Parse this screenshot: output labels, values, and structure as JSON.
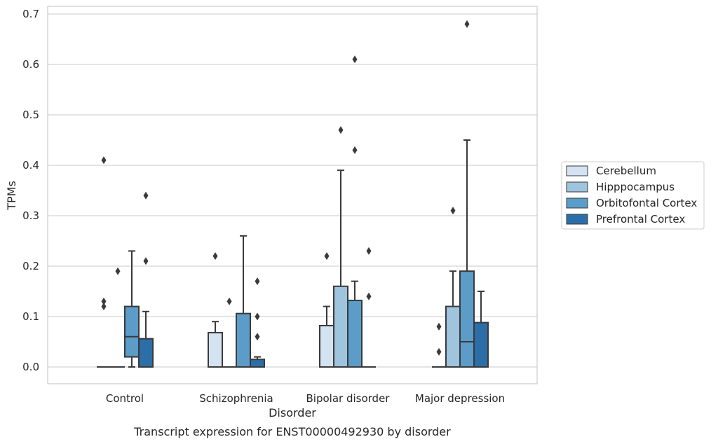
{
  "chart_data": {
    "type": "box",
    "caption": "Transcript expression for ENST00000492930 by disorder",
    "xlabel": "Disorder",
    "ylabel": "TPMs",
    "ylim": [
      -0.033,
      0.715
    ],
    "yticks": [
      0.0,
      0.1,
      0.2,
      0.3,
      0.4,
      0.5,
      0.6,
      0.7
    ],
    "ytick_labels": [
      "0.0",
      "0.1",
      "0.2",
      "0.3",
      "0.4",
      "0.5",
      "0.6",
      "0.7"
    ],
    "grid": "horizontal",
    "legend_placement": "right, outside plot",
    "categories": [
      "Control",
      "Schizophrenia",
      "Bipolar disorder",
      "Major depression"
    ],
    "series": [
      {
        "name": "Cerebellum",
        "color": "#d4e3f1",
        "boxes": [
          {
            "q1": 0,
            "median": 0,
            "q3": 0,
            "whisker_low": 0,
            "whisker_high": 0,
            "outliers": [
              0.12,
              0.13,
              0.41
            ]
          },
          {
            "q1": 0,
            "median": 0,
            "q3": 0.068,
            "whisker_low": 0,
            "whisker_high": 0.09,
            "outliers": [
              0.22
            ]
          },
          {
            "q1": 0,
            "median": 0,
            "q3": 0.082,
            "whisker_low": 0,
            "whisker_high": 0.12,
            "outliers": [
              0.22
            ]
          },
          {
            "q1": 0,
            "median": 0,
            "q3": 0,
            "whisker_low": 0,
            "whisker_high": 0,
            "outliers": [
              0.03,
              0.08
            ]
          }
        ]
      },
      {
        "name": "Hipppocampus",
        "color": "#9ec4de",
        "boxes": [
          {
            "q1": 0,
            "median": 0,
            "q3": 0,
            "whisker_low": 0,
            "whisker_high": 0,
            "outliers": [
              0.19
            ]
          },
          {
            "q1": 0,
            "median": 0,
            "q3": 0,
            "whisker_low": 0,
            "whisker_high": 0,
            "outliers": [
              0.13
            ]
          },
          {
            "q1": 0,
            "median": 0,
            "q3": 0.16,
            "whisker_low": 0,
            "whisker_high": 0.39,
            "outliers": [
              0.47
            ]
          },
          {
            "q1": 0,
            "median": 0,
            "q3": 0.12,
            "whisker_low": 0,
            "whisker_high": 0.19,
            "outliers": [
              0.31
            ]
          }
        ]
      },
      {
        "name": "Orbitofontal Cortex",
        "color": "#5b9cc9",
        "boxes": [
          {
            "q1": 0.02,
            "median": 0.06,
            "q3": 0.12,
            "whisker_low": 0,
            "whisker_high": 0.23,
            "outliers": []
          },
          {
            "q1": 0,
            "median": 0,
            "q3": 0.106,
            "whisker_low": 0,
            "whisker_high": 0.26,
            "outliers": []
          },
          {
            "q1": 0,
            "median": 0,
            "q3": 0.132,
            "whisker_low": 0,
            "whisker_high": 0.17,
            "outliers": [
              0.43,
              0.61
            ]
          },
          {
            "q1": 0,
            "median": 0.05,
            "q3": 0.19,
            "whisker_low": 0,
            "whisker_high": 0.45,
            "outliers": [
              0.68
            ]
          }
        ]
      },
      {
        "name": "Prefrontal Cortex",
        "color": "#2c6ea8",
        "boxes": [
          {
            "q1": 0,
            "median": 0,
            "q3": 0.056,
            "whisker_low": 0,
            "whisker_high": 0.11,
            "outliers": [
              0.21,
              0.34
            ]
          },
          {
            "q1": 0,
            "median": 0,
            "q3": 0.015,
            "whisker_low": 0,
            "whisker_high": 0.02,
            "outliers": [
              0.06,
              0.1,
              0.17
            ]
          },
          {
            "q1": 0,
            "median": 0,
            "q3": 0,
            "whisker_low": 0,
            "whisker_high": 0,
            "outliers": [
              0.14,
              0.23
            ]
          },
          {
            "q1": 0,
            "median": 0,
            "q3": 0.088,
            "whisker_low": 0,
            "whisker_high": 0.15,
            "outliers": []
          }
        ]
      }
    ]
  }
}
